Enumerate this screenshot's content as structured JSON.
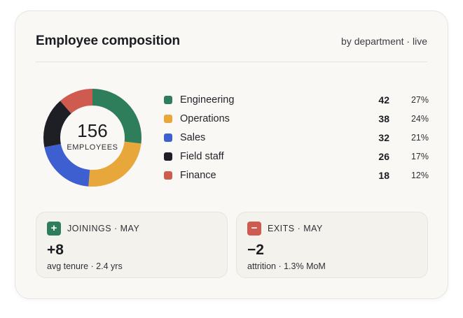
{
  "header": {
    "title": "Employee composition",
    "subtitle": "by department · live"
  },
  "donut": {
    "total": "156",
    "total_label": "EMPLOYEES"
  },
  "legend": [
    {
      "name": "Engineering",
      "value": "42",
      "pct": "27%",
      "color": "#2e7d5b"
    },
    {
      "name": "Operations",
      "value": "38",
      "pct": "24%",
      "color": "#e8a73a"
    },
    {
      "name": "Sales",
      "value": "32",
      "pct": "21%",
      "color": "#3e5fcf"
    },
    {
      "name": "Field staff",
      "value": "26",
      "pct": "17%",
      "color": "#1d1f24"
    },
    {
      "name": "Finance",
      "value": "18",
      "pct": "12%",
      "color": "#cf5a4f"
    }
  ],
  "stats": {
    "joinings": {
      "icon": "plus-icon",
      "symbol": "+",
      "label": "JOININGS · MAY",
      "value": "+8",
      "note": "avg tenure · 2.4 yrs",
      "color": "#2e7d5b"
    },
    "exits": {
      "icon": "minus-icon",
      "symbol": "−",
      "label": "EXITS · MAY",
      "value": "−2",
      "note": "attrition · 1.3% MoM",
      "color": "#cf5a4f"
    }
  }
}
